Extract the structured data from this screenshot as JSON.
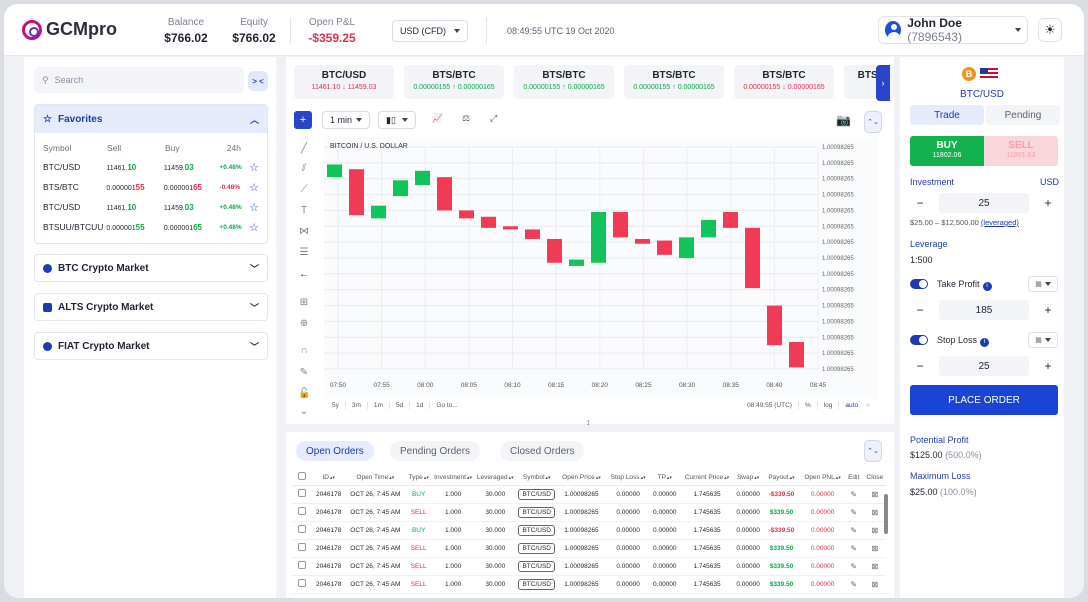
{
  "header": {
    "logo_text": "GCMpro",
    "balance_label": "Balance",
    "balance_value": "$766.02",
    "equity_label": "Equity",
    "equity_value": "$766.02",
    "pnl_label": "Open P&L",
    "pnl_value": "-$359.25",
    "account_type": "USD (CFD)",
    "datetime": "08:49:55 UTC 19 Oct 2020",
    "user_name": "John Doe",
    "user_id": "(7896543)"
  },
  "sidebar": {
    "search_placeholder": "Search",
    "collapse_label": "> <",
    "favorites_title": "Favorites",
    "columns": [
      "Symbol",
      "Sell",
      "Buy",
      "24h"
    ],
    "rows": [
      {
        "symbol": "BTC/USD",
        "sell_a": "11461.",
        "sell_b": "10",
        "buy_a": "11459.",
        "buy_b": "03",
        "change": "+0.48%",
        "up": true
      },
      {
        "symbol": "BTS/BTC",
        "sell_a": "0.000001",
        "sell_b": "55",
        "buy_a": "0.000001",
        "buy_b": "65",
        "change": "-0.48%",
        "up": false
      },
      {
        "symbol": "BTC/USD",
        "sell_a": "11461.",
        "sell_b": "10",
        "buy_a": "11459.",
        "buy_b": "03",
        "change": "+0.48%",
        "up": true
      },
      {
        "symbol": "BTSUU/BTCUU",
        "sell_a": "0.000001",
        "sell_b": "55",
        "buy_a": "0.000001",
        "buy_b": "65",
        "change": "+0.48%",
        "up": true
      }
    ],
    "markets": [
      "BTC Crypto Market",
      "ALTS Crypto Market",
      "FIAT Crypto Market"
    ]
  },
  "pairs": [
    {
      "name": "BTC/USD",
      "sell": "11461.10",
      "buy": "11459.03",
      "dir": "down"
    },
    {
      "name": "BTS/BTC",
      "sell": "0.00000155",
      "buy": "0.00000165",
      "dir": "up"
    },
    {
      "name": "BTS/BTC",
      "sell": "0.00000155",
      "buy": "0.00000165",
      "dir": "up"
    },
    {
      "name": "BTS/BTC",
      "sell": "0.00000155",
      "buy": "0.00000165",
      "dir": "up"
    },
    {
      "name": "BTS/BTC",
      "sell": "0.00000155",
      "buy": "0.00000165",
      "dir": "down"
    },
    {
      "name": "BTS.",
      "sell": "",
      "buy": "",
      "dir": "up"
    }
  ],
  "chart_toolbar": {
    "interval": "1 min"
  },
  "chart_data": {
    "type": "candlestick",
    "title": "BITCOIN / U.S. DOLLAR",
    "x_ticks": [
      "07:50",
      "07:55",
      "08:00",
      "08:05",
      "08:10",
      "08:15",
      "08:20",
      "08:25",
      "08:30",
      "08:35",
      "08:40",
      "08:45"
    ],
    "y_ticks": [
      "1.00098265",
      "1.00098265",
      "1.00098265",
      "1.00098265",
      "1.00098265",
      "1.00098265",
      "1.00098265",
      "1.00098265",
      "1.00098265",
      "1.00098265",
      "1.00098265",
      "1.00098265",
      "1.00098265",
      "1.00098265",
      "1.00098265"
    ],
    "candles": [
      {
        "o": 6.05,
        "c": 6.45
      },
      {
        "o": 6.3,
        "c": 4.85
      },
      {
        "o": 4.75,
        "c": 5.15
      },
      {
        "o": 5.45,
        "c": 5.95
      },
      {
        "o": 5.8,
        "c": 6.25
      },
      {
        "o": 6.05,
        "c": 5.0
      },
      {
        "o": 5.0,
        "c": 4.75
      },
      {
        "o": 4.8,
        "c": 4.45
      },
      {
        "o": 4.5,
        "c": 4.4
      },
      {
        "o": 4.4,
        "c": 4.1
      },
      {
        "o": 4.1,
        "c": 3.35
      },
      {
        "o": 3.25,
        "c": 3.45
      },
      {
        "o": 3.35,
        "c": 4.95
      },
      {
        "o": 4.95,
        "c": 4.15
      },
      {
        "o": 4.1,
        "c": 3.95
      },
      {
        "o": 4.05,
        "c": 3.6
      },
      {
        "o": 3.5,
        "c": 4.15
      },
      {
        "o": 4.15,
        "c": 4.7
      },
      {
        "o": 4.95,
        "c": 4.45
      },
      {
        "o": 4.45,
        "c": 2.55
      },
      {
        "o": 2.0,
        "c": 0.75
      },
      {
        "o": 0.85,
        "c": 0.05
      }
    ]
  },
  "period_bar": [
    "5y",
    "3m",
    "1m",
    "5d",
    "1d",
    "Go to...",
    "08:49:55 (UTC)",
    "%",
    "log",
    "auto"
  ],
  "orders": {
    "tabs": [
      "Open Orders",
      "Pending Orders",
      "Closed Orders"
    ],
    "columns": [
      "ID",
      "Open Time",
      "Type",
      "Investment",
      "Leveraged",
      "Symbol",
      "Open Price",
      "Stop Loss",
      "TP",
      "Current Price",
      "Swap",
      "Payout",
      "Open PNL",
      "Edit",
      "Close"
    ],
    "rows": [
      {
        "id": "2046178",
        "time": "OCT 26, 7:45 AM",
        "type": "BUY",
        "inv": "1.000",
        "lev": "30.000",
        "sym": "BTC/USD",
        "open": "1.00098265",
        "sl": "0.00000",
        "tp": "0.00000",
        "cur": "1.745635",
        "swap": "0.00000",
        "payout": "-$339.50",
        "pnl": "0.00000"
      },
      {
        "id": "2046178",
        "time": "OCT 26, 7:45 AM",
        "type": "SELL",
        "inv": "1.000",
        "lev": "30.000",
        "sym": "BTC/USD",
        "open": "1.00098265",
        "sl": "0.00000",
        "tp": "0.00000",
        "cur": "1.745635",
        "swap": "0.00000",
        "payout": "$339.50",
        "pnl": "0.00000"
      },
      {
        "id": "2046178",
        "time": "OCT 26, 7:45 AM",
        "type": "BUY",
        "inv": "1.000",
        "lev": "30.000",
        "sym": "BTC/USD",
        "open": "1.00098265",
        "sl": "0.00000",
        "tp": "0.00000",
        "cur": "1.745635",
        "swap": "0.00000",
        "payout": "-$339.50",
        "pnl": "0.00000"
      },
      {
        "id": "2046178",
        "time": "OCT 26, 7:45 AM",
        "type": "SELL",
        "inv": "1.000",
        "lev": "30.000",
        "sym": "BTC/USD",
        "open": "1.00098265",
        "sl": "0.00000",
        "tp": "0.00000",
        "cur": "1.745635",
        "swap": "0.00000",
        "payout": "$339.50",
        "pnl": "0.00000"
      },
      {
        "id": "2046178",
        "time": "OCT 26, 7:45 AM",
        "type": "SELL",
        "inv": "1.000",
        "lev": "30.000",
        "sym": "BTC/USD",
        "open": "1.00098265",
        "sl": "0.00000",
        "tp": "0.00000",
        "cur": "1.745635",
        "swap": "0.00000",
        "payout": "$339.50",
        "pnl": "0.00000"
      },
      {
        "id": "2046178",
        "time": "OCT 26, 7:45 AM",
        "type": "SELL",
        "inv": "1.000",
        "lev": "30.000",
        "sym": "BTC/USD",
        "open": "1.00098265",
        "sl": "0.00000",
        "tp": "0.00000",
        "cur": "1.745635",
        "swap": "0.00000",
        "payout": "$339.50",
        "pnl": "0.00000"
      }
    ]
  },
  "order_panel": {
    "pair": "BTC/USD",
    "tab_trade": "Trade",
    "tab_pending": "Pending",
    "buy_label": "BUY",
    "buy_price": "11802.06",
    "sell_label": "SELL",
    "sell_price": "11801.63",
    "investment_label": "Investment",
    "investment_currency": "USD",
    "investment_value": "25",
    "range_text": "$25.00 – $12,500.00",
    "leveraged_link": "(leveraged)",
    "leverage_label": "Leverage",
    "leverage_value": "1:500",
    "take_profit_label": "Take Profit",
    "take_profit_value": "185",
    "stop_loss_label": "Stop Loss",
    "stop_loss_value": "25",
    "place_order": "PLACE ORDER",
    "potential_profit_label": "Potential Profit",
    "potential_profit_value": "$125.00",
    "potential_profit_pct": "(500.0%)",
    "max_loss_label": "Maximum Loss",
    "max_loss_value": "$25.00",
    "max_loss_pct": "(100.0%)"
  },
  "colors": {
    "accent": "#1f3bb3",
    "buy": "#12b34f",
    "sell": "#e0314b"
  }
}
